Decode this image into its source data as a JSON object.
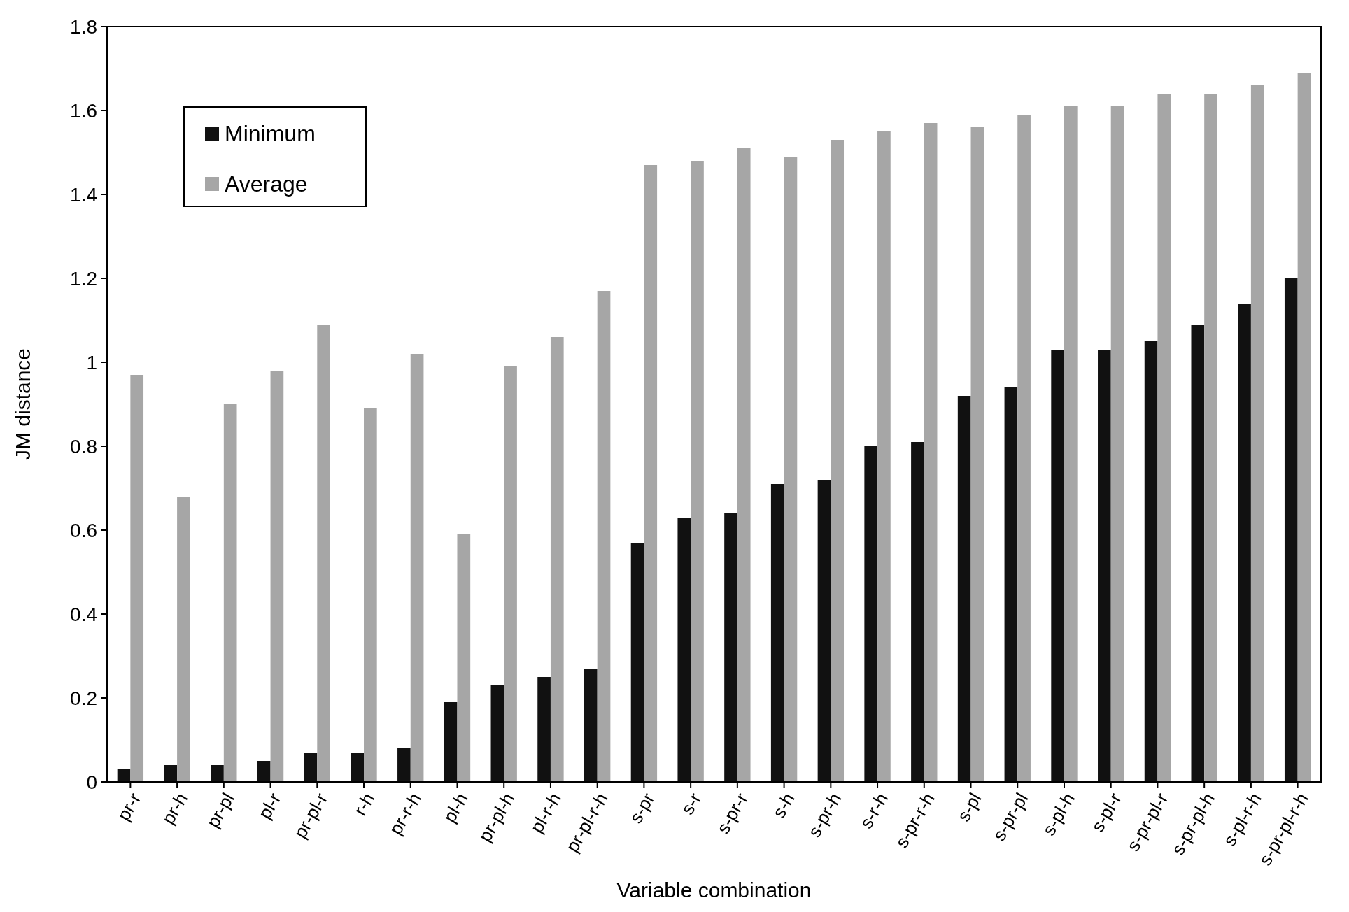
{
  "chart_data": {
    "type": "bar",
    "xlabel": "Variable combination",
    "ylabel": "JM distance",
    "categories": [
      "pr-r",
      "pr-h",
      "pr-pl",
      "pl-r",
      "pr-pl-r",
      "r-h",
      "pr-r-h",
      "pl-h",
      "pr-pl-h",
      "pl-r-h",
      "pr-pl-r-h",
      "s-pr",
      "s-r",
      "s-pr-r",
      "s-h",
      "s-pr-h",
      "s-r-h",
      "s-pr-r-h",
      "s-pl",
      "s-pr-pl",
      "s-pl-h",
      "s-pl-r",
      "s-pr-pl-r",
      "s-pr-pl-h",
      "s-pl-r-h",
      "s-pr-pl-r-h"
    ],
    "series": [
      {
        "name": "Minimum",
        "color": "#111111",
        "values": [
          0.03,
          0.04,
          0.04,
          0.05,
          0.07,
          0.07,
          0.08,
          0.19,
          0.23,
          0.25,
          0.27,
          0.57,
          0.63,
          0.64,
          0.71,
          0.72,
          0.8,
          0.81,
          0.92,
          0.94,
          1.03,
          1.03,
          1.05,
          1.09,
          1.14,
          1.2
        ]
      },
      {
        "name": "Average",
        "color": "#a6a6a6",
        "values": [
          0.97,
          0.68,
          0.9,
          0.98,
          1.09,
          0.89,
          1.02,
          0.59,
          0.99,
          1.06,
          1.17,
          1.47,
          1.48,
          1.51,
          1.49,
          1.53,
          1.55,
          1.57,
          1.56,
          1.59,
          1.61,
          1.61,
          1.64,
          1.64,
          1.66,
          1.69
        ]
      }
    ],
    "ylim": [
      0,
      1.8
    ],
    "yticks": [
      0,
      0.2,
      0.4,
      0.6,
      0.8,
      1,
      1.2,
      1.4,
      1.6,
      1.8
    ],
    "grid": false,
    "legend": "top left"
  }
}
